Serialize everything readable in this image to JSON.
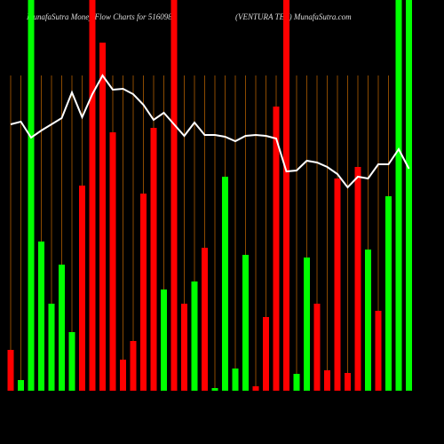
{
  "chart_data": {
    "type": "bar",
    "title": "MunafaSutra  Money Flow  Charts for 516098",
    "subtitle": "(VENTURA TEX)  MunafaSutra.com",
    "categories": [
      null,
      null,
      null,
      null,
      null,
      null,
      null,
      null,
      null,
      null,
      null,
      null,
      null,
      null,
      null,
      null,
      null,
      null,
      null,
      null,
      null,
      null,
      null,
      null,
      null,
      null,
      null,
      null,
      null,
      null,
      null,
      null,
      null,
      null,
      null,
      null,
      null,
      null,
      null,
      null
    ],
    "series": [
      {
        "values": [
          46,
          12,
          440,
          168,
          98,
          142,
          66,
          231,
          440,
          392,
          291,
          35,
          56,
          222,
          296,
          114,
          440,
          98,
          123,
          161,
          3,
          241,
          25,
          153,
          5,
          83,
          320,
          440,
          19,
          150,
          98,
          23,
          239,
          20,
          252,
          159,
          90,
          219,
          440,
          440
        ],
        "colors": [
          "#ff0000",
          "#00ff00",
          "#00ff00",
          "#00ff00",
          "#00ff00",
          "#00ff00",
          "#00ff00",
          "#ff0000",
          "#ff0000",
          "#ff0000",
          "#ff0000",
          "#ff0000",
          "#ff0000",
          "#ff0000",
          "#ff0000",
          "#00ff00",
          "#ff0000",
          "#ff0000",
          "#00ff00",
          "#ff0000",
          "#00ff00",
          "#00ff00",
          "#00ff00",
          "#00ff00",
          "#ff0000",
          "#ff0000",
          "#ff0000",
          "#ff0000",
          "#00ff00",
          "#00ff00",
          "#ff0000",
          "#ff0000",
          "#ff0000",
          "#ff0000",
          "#ff0000",
          "#00ff00",
          "#ff0000",
          "#00ff00",
          "#00ff00",
          "#00ff00"
        ]
      }
    ],
    "line": {
      "color": "#ffffff",
      "values": [
        300,
        303,
        285,
        293,
        300,
        307,
        336,
        308,
        334,
        355,
        339,
        340,
        334,
        322,
        305,
        313,
        300,
        287,
        302,
        288,
        288,
        286,
        281,
        287,
        288,
        287,
        284,
        247,
        248,
        259,
        257,
        252,
        244,
        229,
        241,
        239,
        255,
        255,
        272,
        250
      ]
    },
    "ylim": [
      0,
      440
    ],
    "grid": true,
    "grid_color": "#8b4a00"
  }
}
